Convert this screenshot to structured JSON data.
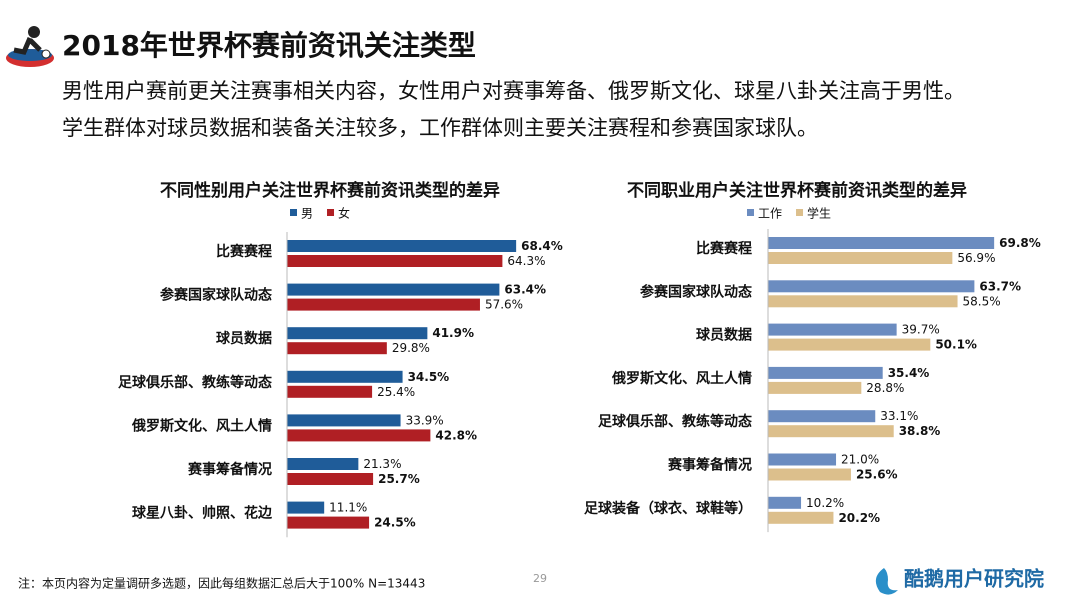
{
  "header": {
    "title": "2018年世界杯赛前资讯关注类型",
    "lines": [
      "男性用户赛前更关注赛事相关内容，女性用户对赛事筹备、俄罗斯文化、球星八卦关注高于男性。",
      "学生群体对球员数据和装备关注较多，工作群体则主要关注赛程和参赛国家球队。"
    ]
  },
  "chart_data": [
    {
      "type": "bar",
      "orientation": "horizontal",
      "title": "不同性别用户关注世界杯赛前资讯类型的差异",
      "categories": [
        "比赛赛程",
        "参赛国家球队动态",
        "球员数据",
        "足球俱乐部、教练等动态",
        "俄罗斯文化、风土人情",
        "赛事筹备情况",
        "球星八卦、帅照、花边"
      ],
      "series": [
        {
          "name": "男",
          "color": "#1f5c99",
          "values": [
            68.4,
            63.4,
            41.9,
            34.5,
            33.9,
            21.3,
            11.1
          ],
          "value_labels": [
            "68.4%",
            "63.4%",
            "41.9%",
            "34.5%",
            "33.9%",
            "21.3%",
            "11.1%"
          ]
        },
        {
          "name": "女",
          "color": "#b01f24",
          "values": [
            64.3,
            57.6,
            29.8,
            25.4,
            42.8,
            25.7,
            24.5
          ],
          "value_labels": [
            "64.3%",
            "57.6%",
            "29.8%",
            "25.4%",
            "42.8%",
            "25.7%",
            "24.5%"
          ]
        }
      ]
    },
    {
      "type": "bar",
      "orientation": "horizontal",
      "title": "不同职业用户关注世界杯赛前资讯类型的差异",
      "categories": [
        "比赛赛程",
        "参赛国家球队动态",
        "球员数据",
        "俄罗斯文化、风土人情",
        "足球俱乐部、教练等动态",
        "赛事筹备情况",
        "足球装备（球衣、球鞋等）"
      ],
      "series": [
        {
          "name": "工作",
          "color": "#6b8cc0",
          "values": [
            69.8,
            63.7,
            39.7,
            35.4,
            33.1,
            21.0,
            10.2
          ],
          "value_labels": [
            "69.8%",
            "63.7%",
            "39.7%",
            "35.4%",
            "33.1%",
            "21.0%",
            "10.2%"
          ]
        },
        {
          "name": "学生",
          "color": "#dcbf8c",
          "values": [
            56.9,
            58.5,
            50.1,
            28.8,
            38.8,
            25.6,
            20.2
          ],
          "value_labels": [
            "56.9%",
            "58.5%",
            "50.1%",
            "28.8%",
            "38.8%",
            "25.6%",
            "20.2%"
          ]
        }
      ]
    }
  ],
  "footer": {
    "note": "注：本页内容为定量调研多选题，因此每组数据汇总后大于100%  N=13443",
    "page": "29",
    "brand": "酷鹅用户研究院"
  }
}
